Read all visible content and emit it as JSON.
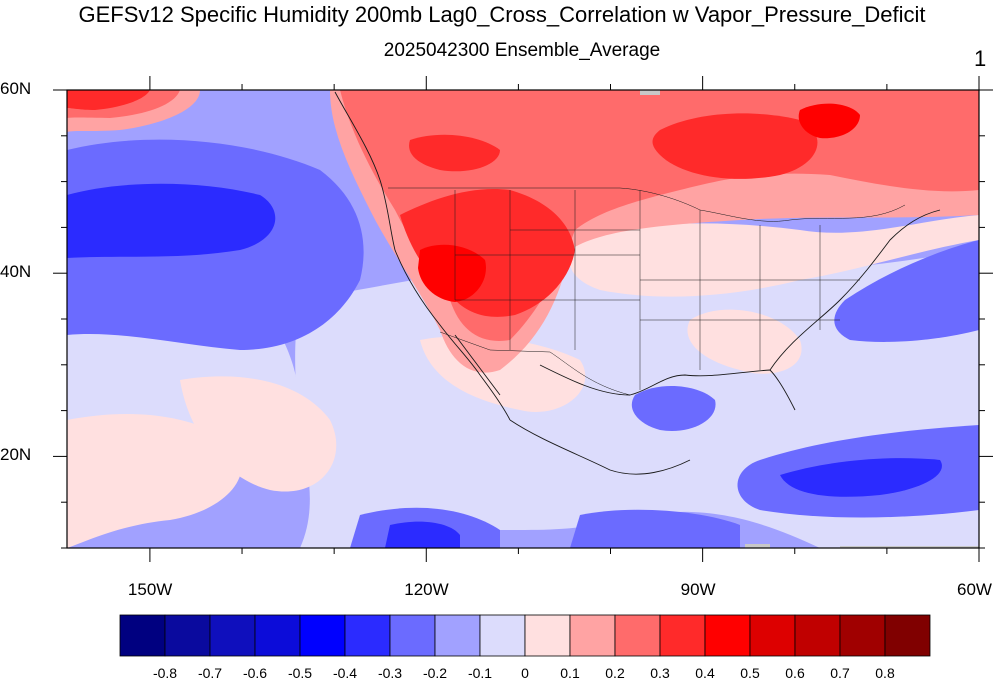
{
  "title": "GEFSv12 Specific Humidity 200mb Lag0_Cross_Correlation w Vapor_Pressure_Deficit",
  "subtitle": "2025042300 Ensemble_Average",
  "panel_number": "1",
  "map": {
    "lat_labels": [
      {
        "lat": 60,
        "text": "60N"
      },
      {
        "lat": 40,
        "text": "40N"
      },
      {
        "lat": 20,
        "text": "20N"
      }
    ],
    "lon_labels": [
      {
        "lon": -150,
        "text": "150W"
      },
      {
        "lon": -120,
        "text": "120W"
      },
      {
        "lon": -90,
        "text": "90W"
      },
      {
        "lon": -60,
        "text": "60W"
      }
    ],
    "extent": {
      "lon_min": -159,
      "lon_max": -60,
      "lat_min": 10,
      "lat_max": 60
    }
  },
  "colorbar": {
    "colors": [
      "#000080",
      "#0a0a9e",
      "#0f0fbd",
      "#0c0cd9",
      "#0000ff",
      "#2b2bff",
      "#6b6bff",
      "#a1a1ff",
      "#dcdcfc",
      "#ffe0e0",
      "#ffa3a3",
      "#ff6b6b",
      "#ff2a2a",
      "#ff0000",
      "#dd0000",
      "#c00000",
      "#a00000",
      "#800000"
    ],
    "labels": [
      "-0.8",
      "-0.7",
      "-0.6",
      "-0.5",
      "-0.4",
      "-0.3",
      "-0.2",
      "-0.1",
      "0",
      "0.1",
      "0.2",
      "0.3",
      "0.4",
      "0.5",
      "0.6",
      "0.7",
      "0.8"
    ]
  }
}
